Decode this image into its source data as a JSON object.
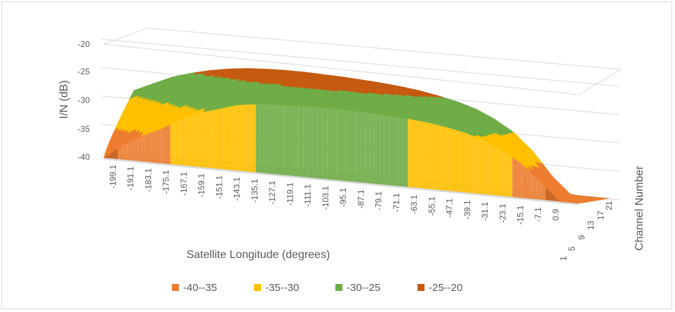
{
  "chart_data": {
    "type": "surface",
    "title": "",
    "xlabel": "Satellite Longitude (degrees)",
    "ylabel": "I/N (dB)",
    "depth_label": "Channel Number",
    "zlim": [
      -40,
      -20
    ],
    "z_ticks": [
      "-20",
      "-25",
      "-30",
      "-35",
      "-40"
    ],
    "x_ticks": [
      "-199.1",
      "-191.1",
      "-183.1",
      "-175.1",
      "-167.1",
      "-159.1",
      "-151.1",
      "-143.1",
      "-135.1",
      "-127.1",
      "-119.1",
      "-111.1",
      "-103.1",
      "-95.1",
      "-87.1",
      "-79.1",
      "-71.1",
      "-63.1",
      "-55.1",
      "-47.1",
      "-39.1",
      "-31.1",
      "-23.1",
      "-15.1",
      "-7.1",
      "0.9"
    ],
    "depth_ticks": [
      "1",
      "5",
      "9",
      "13",
      "17",
      "21"
    ],
    "bands": [
      {
        "label": "-40--35",
        "min": -40,
        "max": -35,
        "color": "#ED7D31"
      },
      {
        "label": "-35--30",
        "min": -35,
        "max": -30,
        "color": "#FFC000"
      },
      {
        "label": "-30--25",
        "min": -30,
        "max": -25,
        "color": "#70AD47"
      },
      {
        "label": "-25--20",
        "min": -25,
        "max": -20,
        "color": "#C55A11"
      }
    ],
    "profile": {
      "longitude": [
        -199.1,
        -191.1,
        -183.1,
        -175.1,
        -167.1,
        -159.1,
        -151.1,
        -143.1,
        -135.1,
        -127.1,
        -119.1,
        -111.1,
        -103.1,
        -95.1,
        -87.1,
        -79.1,
        -71.1,
        -63.1,
        -55.1,
        -47.1,
        -39.1,
        -31.1,
        -23.1,
        -15.1,
        -7.1,
        0.9
      ],
      "front_channel_1": [
        -40,
        -37.5,
        -35.5,
        -34,
        -32,
        -30.5,
        -29.5,
        -28.5,
        -28,
        -27.8,
        -27.6,
        -27.5,
        -27.5,
        -27.5,
        -27.6,
        -27.8,
        -28,
        -28.3,
        -28.8,
        -29.5,
        -30.5,
        -32,
        -34,
        -37,
        -40,
        -40
      ],
      "back_channel_21": [
        -29,
        -27.5,
        -26,
        -25,
        -24.2,
        -23.6,
        -23.2,
        -23,
        -22.9,
        -22.9,
        -23,
        -23.1,
        -23.3,
        -23.5,
        -23.8,
        -24.2,
        -24.8,
        -25.5,
        -26.5,
        -28,
        -30,
        -33,
        -37,
        -40,
        -40,
        -40
      ]
    },
    "legend_position": "bottom",
    "grid": true
  }
}
